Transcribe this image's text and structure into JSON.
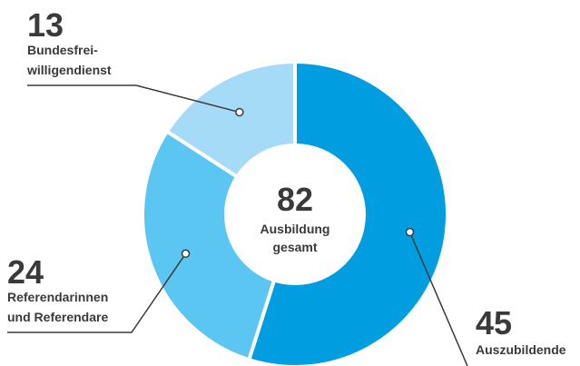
{
  "chart_data": {
    "type": "donut",
    "categories": [
      [
        "Auszubildende"
      ],
      [
        "Referendarinnen",
        "und Referendare"
      ],
      [
        "Bundesfrei-",
        "willigendienst"
      ]
    ],
    "values": [
      45,
      24,
      13
    ],
    "colors": [
      "#009ee0",
      "#5cc6f2",
      "#a6dbf8"
    ],
    "total": 82,
    "center_label": [
      "Ausbildung",
      "gesamt"
    ]
  }
}
